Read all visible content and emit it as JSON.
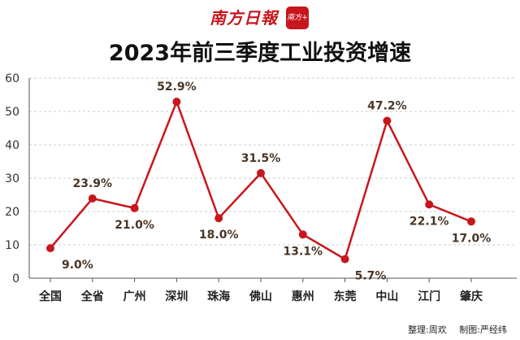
{
  "brand": {
    "logo_text": "南方日報",
    "seal_text": "南方+"
  },
  "colors": {
    "line": "#c8161d",
    "label": "#4a3525",
    "axis": "#555555",
    "grid": "#cccccc",
    "brand": "#c8161d"
  },
  "chart_data": {
    "type": "line",
    "title": "2023年前三季度工业投资增速",
    "xlabel": "",
    "ylabel": "",
    "categories": [
      "全国",
      "全省",
      "广州",
      "深圳",
      "珠海",
      "佛山",
      "惠州",
      "东莞",
      "中山",
      "江门",
      "肇庆"
    ],
    "values": [
      9.0,
      23.9,
      21.0,
      52.9,
      18.0,
      31.5,
      13.1,
      5.7,
      47.2,
      22.1,
      17.0
    ],
    "data_labels": [
      "9.0%",
      "23.9%",
      "21.0%",
      "52.9%",
      "18.0%",
      "31.5%",
      "13.1%",
      "5.7%",
      "47.2%",
      "22.1%",
      "17.0%"
    ],
    "label_position": [
      "below",
      "above",
      "below",
      "above",
      "below",
      "above",
      "below",
      "below",
      "above",
      "below",
      "below"
    ],
    "ylim": [
      0,
      60
    ],
    "yticks": [
      "0",
      "10",
      "20",
      "30",
      "40",
      "50",
      "60"
    ],
    "grid": "dashed-horizontal",
    "legend": "none",
    "marker": "circle"
  },
  "credits": {
    "editor": "整理:周欢",
    "designer": "制图:严经纬"
  }
}
